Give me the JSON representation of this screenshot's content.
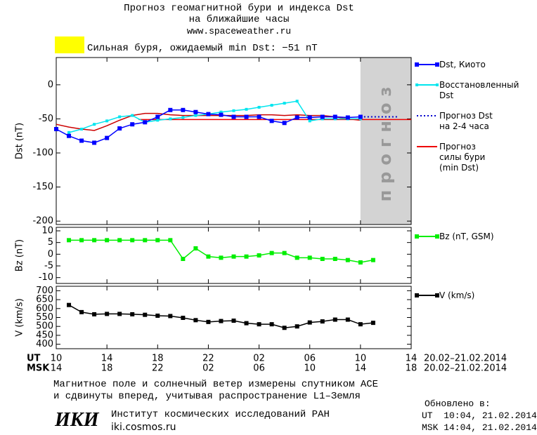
{
  "header": {
    "title": "Прогноз геомагнитной бури и индекса Dst\nна ближайшие часы",
    "subtitle": "www.spaceweather.ru",
    "storm_text": "Сильная буря, ожидаемый min Dst: −51 nT",
    "storm_color": "#ffff00"
  },
  "chart_data": [
    {
      "type": "line",
      "ylabel": "Dst (nT)",
      "xlim": [
        0,
        28
      ],
      "xticks": [
        0,
        4,
        8,
        12,
        16,
        20,
        24,
        28
      ],
      "ylim": [
        -205,
        40
      ],
      "yticks": [
        0,
        -50,
        -100,
        -150,
        -200
      ],
      "forecast_region": {
        "range": [
          24,
          28
        ],
        "label": "прогноз",
        "color": "#d3d3d3"
      },
      "series": [
        {
          "name": "Dst, Киото",
          "color": "#0000ff",
          "marker": "square",
          "x": [
            0,
            1,
            2,
            3,
            4,
            5,
            6,
            7,
            8,
            9,
            10,
            11,
            12,
            13,
            14,
            15,
            16,
            17,
            18,
            19,
            20,
            21,
            22,
            23,
            24
          ],
          "values": [
            -65,
            -75,
            -82,
            -85,
            -78,
            -64,
            -58,
            -55,
            -47,
            -37,
            -37,
            -40,
            -43,
            -44,
            -47,
            -47,
            -47,
            -53,
            -56,
            -48,
            -48,
            -47,
            -47,
            -48,
            -47
          ]
        },
        {
          "name": "Восстановленный\nDst",
          "color": "#00e5ee",
          "marker": "small",
          "x": [
            1,
            2,
            3,
            4,
            5,
            6,
            7,
            8,
            9,
            10,
            11,
            12,
            13,
            14,
            15,
            16,
            17,
            18,
            19,
            20,
            21,
            22,
            23,
            24
          ],
          "values": [
            -70,
            -65,
            -58,
            -53,
            -47,
            -45,
            -55,
            -52,
            -50,
            -48,
            -45,
            -43,
            -40,
            -38,
            -36,
            -33,
            -30,
            -27,
            -24,
            -53,
            -50,
            -50,
            -50,
            -50
          ]
        },
        {
          "name": "Прогноз Dst\nна 2-4 часа",
          "color": "#0000cc",
          "marker": "none",
          "line_style": "dotted",
          "x": [
            24,
            25,
            26,
            27
          ],
          "values": [
            -47,
            -47,
            -47,
            -47
          ]
        },
        {
          "name": "Прогноз\nсилы бури\n(min Dst)",
          "color": "#ee0000",
          "marker": "none",
          "x": [
            6.5,
            28
          ],
          "values": [
            -51,
            -51
          ]
        },
        {
          "color": "#cc0000",
          "marker": "none",
          "x": [
            0,
            1,
            2,
            3,
            4,
            5,
            6,
            7,
            8,
            9,
            10,
            11,
            12,
            13,
            14,
            15,
            16,
            17,
            18,
            19,
            20,
            21,
            22,
            23,
            24
          ],
          "values": [
            -58,
            -62,
            -65,
            -67,
            -60,
            -52,
            -45,
            -42,
            -42,
            -44,
            -45,
            -45,
            -45,
            -45,
            -45,
            -45,
            -44,
            -44,
            -45,
            -44,
            -45,
            -45,
            -47,
            -50,
            -52
          ]
        }
      ]
    },
    {
      "type": "line",
      "ylabel": "Bz (nT)",
      "xlim": [
        0,
        28
      ],
      "xticks": [
        0,
        4,
        8,
        12,
        16,
        20,
        24,
        28
      ],
      "ylim": [
        -12.5,
        11.5
      ],
      "yticks": [
        10,
        5,
        0,
        -5,
        -10
      ],
      "series": [
        {
          "name": "Bz (nT, GSM)",
          "color": "#00ee00",
          "marker": "square",
          "x": [
            1,
            2,
            3,
            4,
            5,
            6,
            7,
            8,
            9,
            10,
            11,
            12,
            13,
            14,
            15,
            16,
            17,
            18,
            19,
            20,
            21,
            22,
            23,
            24,
            25
          ],
          "values": [
            6,
            6,
            6,
            6,
            6,
            6,
            6,
            6,
            6,
            -2,
            2.5,
            -1,
            -1.5,
            -1,
            -1,
            -0.5,
            0.5,
            0.5,
            -1.5,
            -1.5,
            -2,
            -2,
            -2.5,
            -3.5,
            -2.5
          ]
        }
      ]
    },
    {
      "type": "line",
      "ylabel": "V (km/s)",
      "xlim": [
        0,
        28
      ],
      "ylim": [
        375,
        725
      ],
      "yticks": [
        400,
        450,
        500,
        550,
        600,
        650,
        700
      ],
      "xticks": [
        {
          "value": 0,
          "label": "10"
        },
        {
          "value": 4,
          "label": "14"
        },
        {
          "value": 8,
          "label": "18"
        },
        {
          "value": 12,
          "label": "22"
        },
        {
          "value": 16,
          "label": "02"
        },
        {
          "value": 20,
          "label": "06"
        },
        {
          "value": 24,
          "label": "10"
        },
        {
          "value": 28,
          "label": "14"
        }
      ],
      "xticks_msk": [
        {
          "value": 0,
          "label": "14"
        },
        {
          "value": 4,
          "label": "18"
        },
        {
          "value": 8,
          "label": "22"
        },
        {
          "value": 12,
          "label": "02"
        },
        {
          "value": 16,
          "label": "06"
        },
        {
          "value": 20,
          "label": "10"
        },
        {
          "value": 24,
          "label": "14"
        },
        {
          "value": 28,
          "label": "18"
        }
      ],
      "x_label": "UT",
      "x2_label": "MSK",
      "date_range": "20.02–21.02.2014",
      "date_range_msk": "20.02–21.02.2014",
      "series": [
        {
          "name": "V (km/s)",
          "color": "#000000",
          "marker": "square",
          "x": [
            1,
            2,
            3,
            4,
            5,
            6,
            7,
            8,
            9,
            10,
            11,
            12,
            13,
            14,
            15,
            16,
            17,
            18,
            19,
            20,
            21,
            22,
            23,
            24,
            25
          ],
          "values": [
            620,
            580,
            568,
            570,
            570,
            568,
            565,
            560,
            558,
            548,
            535,
            525,
            530,
            532,
            518,
            512,
            512,
            492,
            500,
            522,
            528,
            538,
            538,
            512,
            520
          ]
        }
      ]
    }
  ],
  "footer": {
    "note": "Магнитное поле и солнечный ветер измерены спутником ACE\nи сдвинуты вперед, учитывая распространение L1–Земля",
    "logo": "ИКИ",
    "institute": "Институт космических исследований РАН",
    "site": "iki.cosmos.ru",
    "updated": "Обновлено в:",
    "updated_ut": "UT  10:04, 21.02.2014",
    "updated_msk": "MSK 14:04, 21.02.2014"
  }
}
